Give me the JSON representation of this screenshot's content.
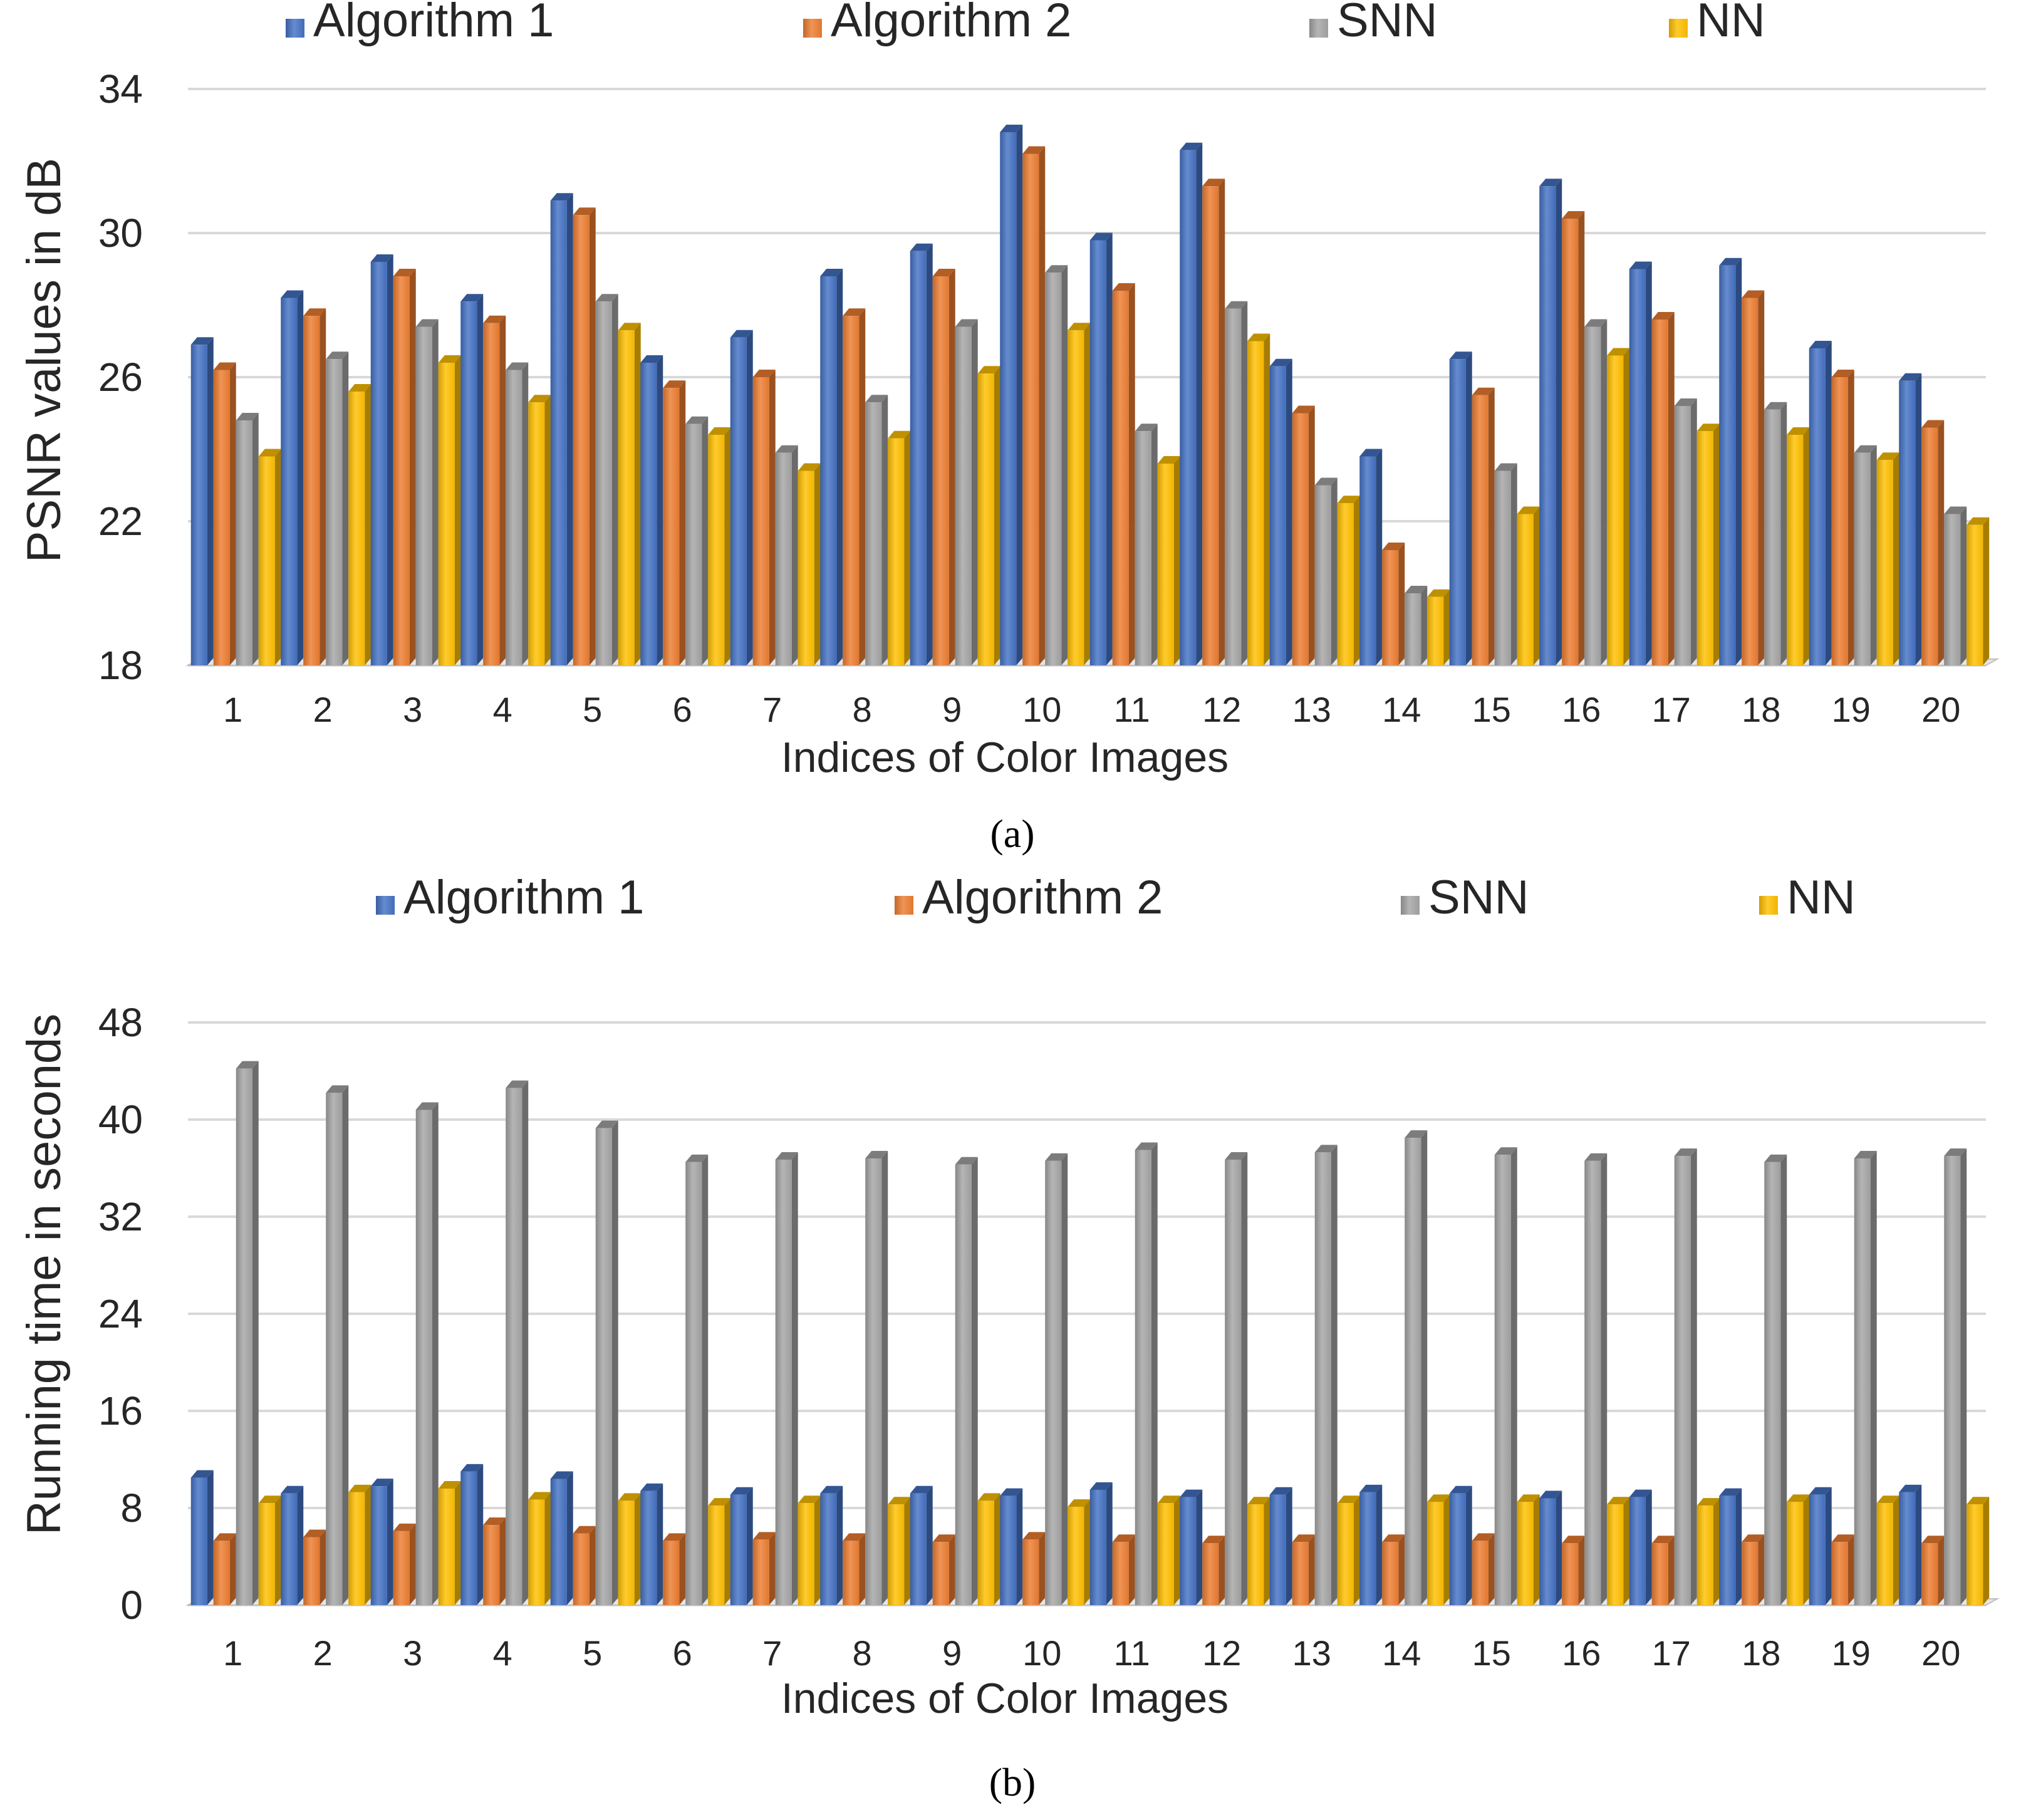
{
  "figure": {
    "panels": [
      "(a)",
      "(b)"
    ]
  },
  "legend": {
    "items": [
      "Algorithm 1",
      "Algorithm 2",
      "SNN",
      "NN"
    ]
  },
  "colors": {
    "Algorithm 1": "#4472c4",
    "Algorithm 2": "#ed7d31",
    "SNN": "#a5a5a5",
    "NN": "#ffc000",
    "grid": "#d9d9d9",
    "text": "#262626"
  },
  "chart_data": [
    {
      "type": "bar",
      "panel": "(a)",
      "xlabel": "Indices of Color Images",
      "ylabel": "PSNR values in dB",
      "ylim": [
        18,
        34
      ],
      "yticks": [
        18,
        22,
        26,
        30,
        34
      ],
      "grid": true,
      "legend_position": "top",
      "style": "3d-clustered",
      "categories": [
        "1",
        "2",
        "3",
        "4",
        "5",
        "6",
        "7",
        "8",
        "9",
        "10",
        "11",
        "12",
        "13",
        "14",
        "15",
        "16",
        "17",
        "18",
        "19",
        "20"
      ],
      "series": [
        {
          "name": "Algorithm 1",
          "values": [
            26.9,
            28.2,
            29.2,
            28.1,
            30.9,
            26.4,
            27.1,
            28.8,
            29.5,
            32.8,
            29.8,
            32.3,
            26.3,
            23.8,
            26.5,
            31.3,
            29.0,
            29.1,
            26.8,
            25.9
          ]
        },
        {
          "name": "Algorithm 2",
          "values": [
            26.2,
            27.7,
            28.8,
            27.5,
            30.5,
            25.7,
            26.0,
            27.7,
            28.8,
            32.2,
            28.4,
            31.3,
            25.0,
            21.2,
            25.5,
            30.4,
            27.6,
            28.2,
            26.0,
            24.6
          ]
        },
        {
          "name": "SNN",
          "values": [
            24.8,
            26.5,
            27.4,
            26.2,
            28.1,
            24.7,
            23.9,
            25.3,
            27.4,
            28.9,
            24.5,
            27.9,
            23.0,
            20.0,
            23.4,
            27.4,
            25.2,
            25.1,
            23.9,
            22.2
          ]
        },
        {
          "name": "NN",
          "values": [
            23.8,
            25.6,
            26.4,
            25.3,
            27.3,
            24.4,
            23.4,
            24.3,
            26.1,
            27.3,
            23.6,
            27.0,
            22.5,
            19.9,
            22.2,
            26.6,
            24.5,
            24.4,
            23.7,
            21.9
          ]
        }
      ]
    },
    {
      "type": "bar",
      "panel": "(b)",
      "xlabel": "Indices of Color Images",
      "ylabel": "Running time in seconds",
      "ylim": [
        0,
        48
      ],
      "yticks": [
        0,
        8,
        16,
        24,
        32,
        40,
        48
      ],
      "grid": true,
      "legend_position": "top",
      "style": "3d-clustered",
      "categories": [
        "1",
        "2",
        "3",
        "4",
        "5",
        "6",
        "7",
        "8",
        "9",
        "10",
        "11",
        "12",
        "13",
        "14",
        "15",
        "16",
        "17",
        "18",
        "19",
        "20"
      ],
      "series": [
        {
          "name": "Algorithm 1",
          "values": [
            10.5,
            9.2,
            9.8,
            11.0,
            10.4,
            9.4,
            9.1,
            9.2,
            9.2,
            9.0,
            9.5,
            8.9,
            9.1,
            9.3,
            9.2,
            8.8,
            8.9,
            9.0,
            9.1,
            9.3
          ]
        },
        {
          "name": "Algorithm 2",
          "values": [
            5.3,
            5.6,
            6.1,
            6.6,
            5.9,
            5.3,
            5.4,
            5.3,
            5.2,
            5.4,
            5.2,
            5.1,
            5.2,
            5.2,
            5.3,
            5.1,
            5.1,
            5.2,
            5.2,
            5.1
          ]
        },
        {
          "name": "SNN",
          "values": [
            44.2,
            42.2,
            40.8,
            42.6,
            39.3,
            36.5,
            36.7,
            36.8,
            36.3,
            36.6,
            37.5,
            36.7,
            37.3,
            38.5,
            37.1,
            36.6,
            37.0,
            36.5,
            36.8,
            37.0
          ]
        },
        {
          "name": "NN",
          "values": [
            8.4,
            9.3,
            9.6,
            8.7,
            8.6,
            8.2,
            8.4,
            8.3,
            8.6,
            8.1,
            8.4,
            8.3,
            8.4,
            8.5,
            8.5,
            8.3,
            8.2,
            8.5,
            8.4,
            8.3
          ]
        }
      ]
    }
  ]
}
